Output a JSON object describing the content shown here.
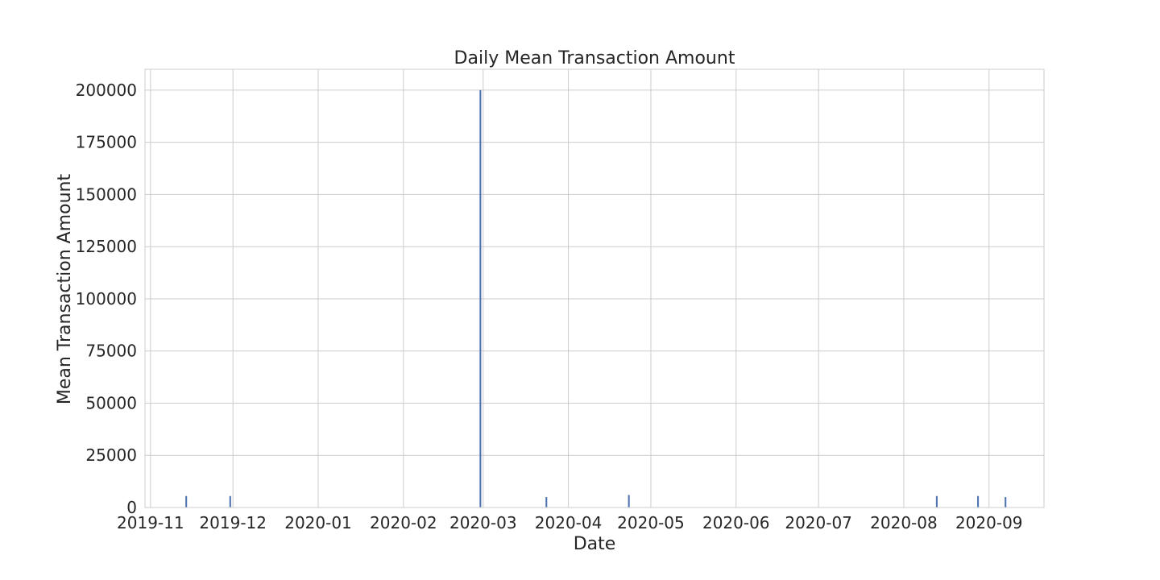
{
  "chart_data": {
    "type": "bar",
    "title": "Daily Mean Transaction Amount",
    "xlabel": "Date",
    "ylabel": "Mean Transaction Amount",
    "ylim": [
      0,
      210000
    ],
    "xlim": [
      "2019-10-30",
      "2020-09-21"
    ],
    "grid": true,
    "x_ticks": [
      "2019-11",
      "2019-12",
      "2020-01",
      "2020-02",
      "2020-03",
      "2020-04",
      "2020-05",
      "2020-06",
      "2020-07",
      "2020-08",
      "2020-09"
    ],
    "y_ticks": [
      0,
      25000,
      50000,
      75000,
      100000,
      125000,
      150000,
      175000,
      200000
    ],
    "bar_color": "#4c72b0",
    "series": [
      {
        "dates": [
          "2019-11-14",
          "2019-11-30",
          "2020-02-29",
          "2020-03-24",
          "2020-04-23",
          "2020-08-13",
          "2020-08-28",
          "2020-09-07"
        ],
        "values": [
          5500,
          5500,
          200000,
          5000,
          6000,
          5500,
          5500,
          5000
        ]
      }
    ]
  }
}
